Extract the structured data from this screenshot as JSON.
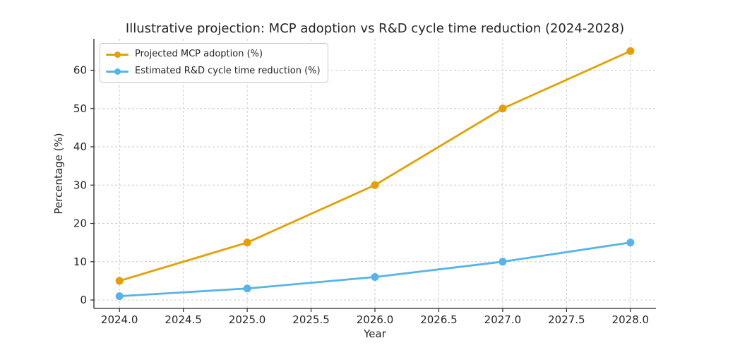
{
  "chart_data": {
    "type": "line",
    "title": "Illustrative projection: MCP adoption vs R&D cycle time reduction (2024-2028)",
    "xlabel": "Year",
    "ylabel": "Percentage (%)",
    "x": [
      2024,
      2025,
      2026,
      2027,
      2028
    ],
    "series": [
      {
        "name": "Projected MCP adoption (%)",
        "color": "#E69F00",
        "values": [
          5,
          15,
          30,
          50,
          65
        ]
      },
      {
        "name": "Estimated R&D cycle time reduction (%)",
        "color": "#56B4E9",
        "values": [
          1,
          3,
          6,
          10,
          15
        ]
      }
    ],
    "xticks": {
      "values": [
        2024,
        2024.5,
        2025,
        2025.5,
        2026,
        2026.5,
        2027,
        2027.5,
        2028
      ],
      "labels": [
        "2024.0",
        "2024.5",
        "2025.0",
        "2025.5",
        "2026.0",
        "2026.5",
        "2027.0",
        "2027.5",
        "2028.0"
      ]
    },
    "yticks": {
      "values": [
        0,
        10,
        20,
        30,
        40,
        50,
        60
      ],
      "labels": [
        "0",
        "10",
        "20",
        "30",
        "40",
        "50",
        "60"
      ]
    },
    "xlim": [
      2023.8,
      2028.2
    ],
    "ylim": [
      -2.2,
      68.2
    ],
    "grid": true,
    "grid_style": "dashed",
    "legend_position": "upper left"
  },
  "colors": {
    "background": "#ffffff",
    "grid": "#cccccc",
    "spine": "#262626",
    "text": "#262626",
    "series_orange": "#E69F00",
    "series_blue": "#56B4E9"
  }
}
